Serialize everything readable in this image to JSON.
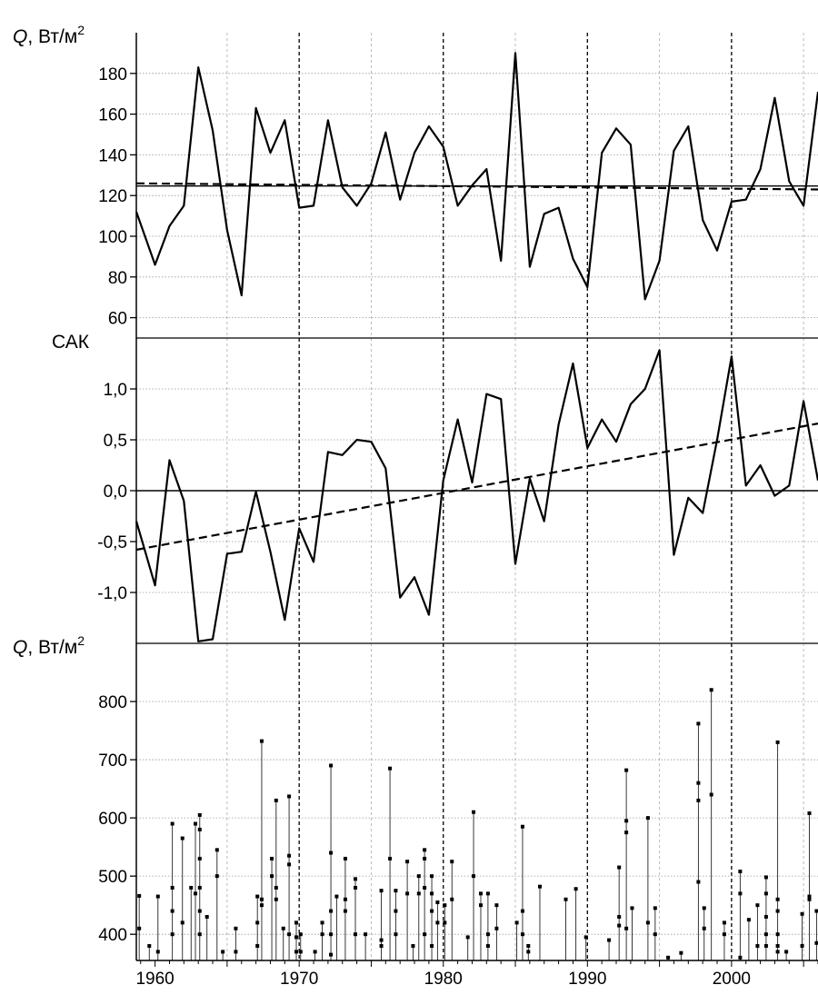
{
  "chart_data": [
    {
      "type": "line",
      "panel": "top",
      "ylabel": {
        "symbol": "Q",
        "text": ", Вт/м",
        "sup": "2"
      },
      "xlim": [
        1958.7,
        2006
      ],
      "ylim": [
        50,
        200
      ],
      "yticks": [
        60,
        80,
        100,
        120,
        140,
        160,
        180
      ],
      "grid": true,
      "series": [
        {
          "style": "solid",
          "x": [
            1958.7,
            1960,
            1961,
            1962,
            1963,
            1964,
            1965,
            1966,
            1967,
            1968,
            1969,
            1970,
            1971,
            1972,
            1973,
            1974,
            1975,
            1976,
            1977,
            1978,
            1979,
            1980,
            1981,
            1982,
            1983,
            1984,
            1985,
            1986,
            1987,
            1988,
            1989,
            1990,
            1991,
            1992,
            1993,
            1994,
            1995,
            1996,
            1997,
            1998,
            1999,
            2000,
            2001,
            2002,
            2003,
            2004,
            2005,
            2006
          ],
          "values": [
            112,
            86,
            105,
            115,
            183,
            152,
            103,
            71,
            163,
            141,
            157,
            114,
            115,
            157,
            124,
            115,
            126,
            151,
            118,
            141,
            154,
            144,
            115,
            125,
            133,
            88,
            190,
            85,
            111,
            114,
            89,
            75,
            141,
            153,
            145,
            69,
            88,
            142,
            154,
            108,
            93,
            117,
            118,
            133,
            168,
            127,
            115,
            171
          ]
        },
        {
          "style": "solid-horizontal",
          "x": [
            1958.7,
            2006
          ],
          "values": [
            124.7,
            124.7
          ]
        },
        {
          "style": "dashed-trend",
          "x": [
            1958.7,
            2006
          ],
          "values": [
            126,
            123
          ]
        }
      ]
    },
    {
      "type": "line",
      "panel": "middle",
      "ylabel": {
        "text": "САК"
      },
      "xlim": [
        1958.7,
        2006
      ],
      "ylim": [
        -1.5,
        1.5
      ],
      "yticks": [
        "1,0",
        "0,5",
        "0,0",
        "-0,5",
        "-1,0"
      ],
      "ytick_values": [
        1.0,
        0.5,
        0.0,
        -0.5,
        -1.0
      ],
      "grid": true,
      "series": [
        {
          "style": "solid",
          "x": [
            1958.7,
            1960,
            1961,
            1962,
            1963,
            1964,
            1965,
            1966,
            1967,
            1968,
            1969,
            1970,
            1971,
            1972,
            1973,
            1974,
            1975,
            1976,
            1977,
            1978,
            1979,
            1980,
            1981,
            1982,
            1983,
            1984,
            1985,
            1986,
            1987,
            1988,
            1989,
            1990,
            1991,
            1992,
            1993,
            1994,
            1995,
            1996,
            1997,
            1998,
            1999,
            2000,
            2001,
            2002,
            2003,
            2004,
            2005,
            2006
          ],
          "values": [
            -0.3,
            -0.93,
            0.3,
            -0.1,
            -1.48,
            -1.46,
            -0.62,
            -0.6,
            -0.01,
            -0.6,
            -1.27,
            -0.37,
            -0.7,
            0.38,
            0.35,
            0.5,
            0.48,
            0.22,
            -1.05,
            -0.85,
            -1.22,
            0.1,
            0.7,
            0.08,
            0.95,
            0.9,
            -0.72,
            0.12,
            -0.3,
            0.65,
            1.25,
            0.42,
            0.7,
            0.48,
            0.85,
            1.0,
            1.38,
            -0.63,
            -0.07,
            -0.22,
            0.5,
            1.32,
            0.05,
            0.25,
            -0.05,
            0.05,
            0.88,
            0.1
          ]
        },
        {
          "style": "solid-horizontal",
          "x": [
            1958.7,
            2006
          ],
          "values": [
            0,
            0
          ]
        },
        {
          "style": "dashed-trend",
          "x": [
            1958.7,
            2006
          ],
          "values": [
            -0.58,
            0.66
          ]
        }
      ]
    },
    {
      "type": "scatter",
      "panel": "bottom",
      "ylabel": {
        "symbol": "Q",
        "text": ", Вт/м",
        "sup": "2"
      },
      "xlim": [
        1958.7,
        2006
      ],
      "ylim": [
        355,
        900
      ],
      "yticks": [
        400,
        500,
        600,
        700,
        800
      ],
      "grid": true,
      "stems": [
        {
          "x": 1958.9,
          "values": [
            466,
            410
          ]
        },
        {
          "x": 1959.6,
          "values": [
            380
          ]
        },
        {
          "x": 1960.2,
          "values": [
            465,
            370
          ]
        },
        {
          "x": 1961.2,
          "values": [
            590,
            480,
            440,
            400
          ]
        },
        {
          "x": 1961.9,
          "values": [
            565,
            420
          ]
        },
        {
          "x": 1962.5,
          "values": [
            480
          ]
        },
        {
          "x": 1962.8,
          "values": [
            590,
            470
          ]
        },
        {
          "x": 1963.1,
          "values": [
            605,
            580,
            530,
            480,
            440,
            400
          ]
        },
        {
          "x": 1963.6,
          "values": [
            430
          ]
        },
        {
          "x": 1964.3,
          "values": [
            545,
            500
          ]
        },
        {
          "x": 1964.7,
          "values": [
            370
          ]
        },
        {
          "x": 1965.6,
          "values": [
            410,
            370
          ]
        },
        {
          "x": 1967.1,
          "values": [
            465,
            420,
            380
          ]
        },
        {
          "x": 1967.4,
          "values": [
            732,
            460,
            450
          ]
        },
        {
          "x": 1968.1,
          "values": [
            530,
            500
          ]
        },
        {
          "x": 1968.4,
          "values": [
            630,
            480,
            460
          ]
        },
        {
          "x": 1968.9,
          "values": [
            410
          ]
        },
        {
          "x": 1969.3,
          "values": [
            637,
            535,
            520,
            400
          ]
        },
        {
          "x": 1969.8,
          "values": [
            420,
            395,
            370
          ]
        },
        {
          "x": 1970.1,
          "values": [
            400,
            370
          ]
        },
        {
          "x": 1971.1,
          "values": [
            370
          ]
        },
        {
          "x": 1971.6,
          "values": [
            420,
            400
          ]
        },
        {
          "x": 1972.2,
          "values": [
            690,
            540,
            440,
            400,
            365
          ]
        },
        {
          "x": 1972.6,
          "values": [
            465
          ]
        },
        {
          "x": 1973.2,
          "values": [
            530,
            460,
            440
          ]
        },
        {
          "x": 1973.9,
          "values": [
            495,
            480,
            400
          ]
        },
        {
          "x": 1974.6,
          "values": [
            400
          ]
        },
        {
          "x": 1975.7,
          "values": [
            475,
            390,
            380
          ]
        },
        {
          "x": 1976.3,
          "values": [
            685,
            530
          ]
        },
        {
          "x": 1976.7,
          "values": [
            475,
            440,
            400
          ]
        },
        {
          "x": 1977.5,
          "values": [
            525,
            470
          ]
        },
        {
          "x": 1977.9,
          "values": [
            380
          ]
        },
        {
          "x": 1978.3,
          "values": [
            500,
            470
          ]
        },
        {
          "x": 1978.7,
          "values": [
            545,
            530,
            480,
            400
          ]
        },
        {
          "x": 1979.2,
          "values": [
            500,
            470,
            440,
            380
          ]
        },
        {
          "x": 1979.6,
          "values": [
            455,
            420
          ]
        },
        {
          "x": 1980.1,
          "values": [
            450,
            420
          ]
        },
        {
          "x": 1980.6,
          "values": [
            525,
            460
          ]
        },
        {
          "x": 1981.7,
          "values": [
            395
          ]
        },
        {
          "x": 1982.1,
          "values": [
            610,
            500
          ]
        },
        {
          "x": 1982.6,
          "values": [
            470,
            450
          ]
        },
        {
          "x": 1983.1,
          "values": [
            470,
            400,
            380
          ]
        },
        {
          "x": 1983.7,
          "values": [
            450,
            410
          ]
        },
        {
          "x": 1985.1,
          "values": [
            420
          ]
        },
        {
          "x": 1985.5,
          "values": [
            585,
            440,
            400
          ]
        },
        {
          "x": 1985.9,
          "values": [
            380,
            370
          ]
        },
        {
          "x": 1986.7,
          "values": [
            482
          ]
        },
        {
          "x": 1988.5,
          "values": [
            460
          ]
        },
        {
          "x": 1989.2,
          "values": [
            478
          ]
        },
        {
          "x": 1989.9,
          "values": [
            395
          ]
        },
        {
          "x": 1991.5,
          "values": [
            390
          ]
        },
        {
          "x": 1992.2,
          "values": [
            515,
            430,
            415
          ]
        },
        {
          "x": 1992.7,
          "values": [
            682,
            595,
            575,
            410
          ]
        },
        {
          "x": 1993.1,
          "values": [
            445
          ]
        },
        {
          "x": 1994.2,
          "values": [
            600,
            420
          ]
        },
        {
          "x": 1994.7,
          "values": [
            445,
            400
          ]
        },
        {
          "x": 1995.6,
          "values": [
            360
          ]
        },
        {
          "x": 1996.5,
          "values": [
            368
          ]
        },
        {
          "x": 1997.7,
          "values": [
            762,
            660,
            630,
            490
          ]
        },
        {
          "x": 1998.1,
          "values": [
            445,
            410
          ]
        },
        {
          "x": 1998.6,
          "values": [
            820,
            640
          ]
        },
        {
          "x": 1999.5,
          "values": [
            420,
            400
          ]
        },
        {
          "x": 2000.6,
          "values": [
            508,
            470,
            360
          ]
        },
        {
          "x": 2001.2,
          "values": [
            425
          ]
        },
        {
          "x": 2001.8,
          "values": [
            450,
            380
          ]
        },
        {
          "x": 2002.4,
          "values": [
            498,
            470,
            430,
            400,
            380
          ]
        },
        {
          "x": 2003.2,
          "values": [
            730,
            460,
            440,
            400,
            380,
            370
          ]
        },
        {
          "x": 2003.8,
          "values": [
            370
          ]
        },
        {
          "x": 2004.9,
          "values": [
            435,
            380
          ]
        },
        {
          "x": 2005.4,
          "values": [
            608,
            465,
            460
          ]
        },
        {
          "x": 2005.9,
          "values": [
            440,
            385
          ]
        }
      ]
    }
  ],
  "x_axis": {
    "ticks": [
      1960,
      1970,
      1980,
      1990,
      2000
    ],
    "dashed_year_lines": [
      1960,
      1970,
      1980,
      1990,
      2000
    ],
    "dotted_year_lines": [
      1965,
      1975,
      1985,
      1995,
      2005
    ]
  }
}
